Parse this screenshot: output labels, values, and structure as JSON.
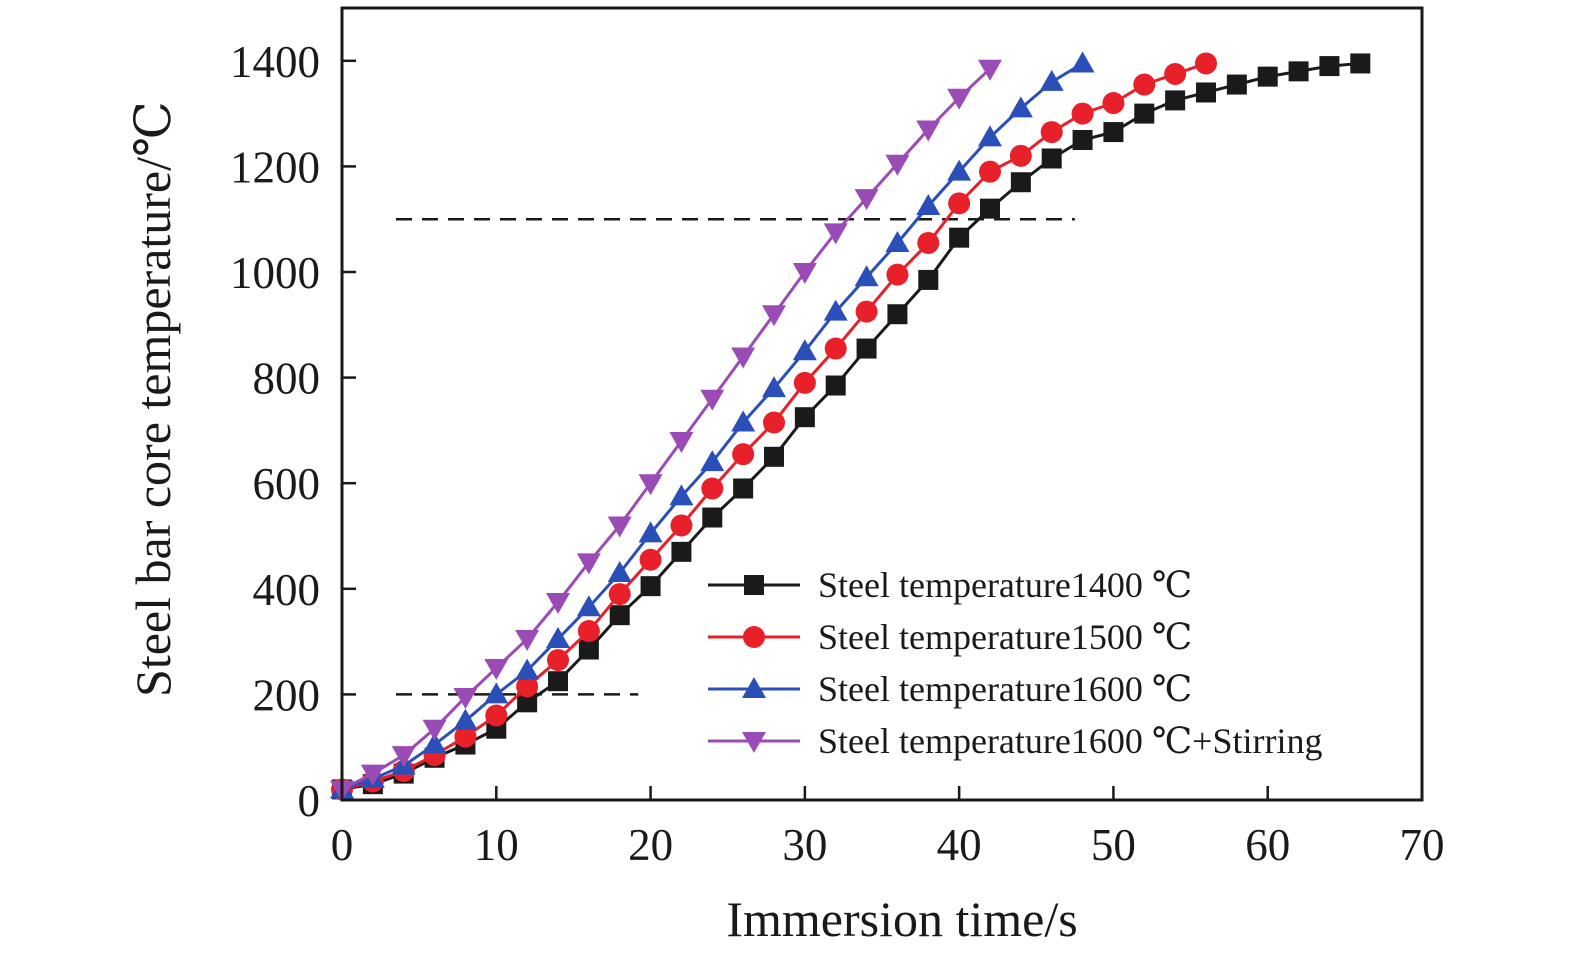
{
  "chart_data": {
    "type": "line",
    "title": "",
    "xlabel": "Immersion time/s",
    "ylabel": "Steel bar core temperature/℃",
    "xlim": [
      0,
      70
    ],
    "ylim": [
      0,
      1500
    ],
    "xticks": [
      "0",
      "10",
      "20",
      "30",
      "40",
      "50",
      "60",
      "70"
    ],
    "yticks": [
      "0",
      "200",
      "400",
      "600",
      "800",
      "1000",
      "1200",
      "1400"
    ],
    "grid": false,
    "legend_position": "bottom-right",
    "reference_lines": [
      {
        "y": 1100,
        "x_start": 3.5,
        "x_end": 47.5,
        "style": "dashed"
      },
      {
        "y": 200,
        "x_start": 3.5,
        "x_end": 19.2,
        "style": "dashed"
      }
    ],
    "series": [
      {
        "name": "Steel temperature1400 ℃",
        "color": "#1a1a1a",
        "marker": "square",
        "x": [
          0,
          2,
          4,
          6,
          8,
          10,
          12,
          14,
          16,
          18,
          20,
          22,
          24,
          26,
          28,
          30,
          32,
          34,
          36,
          38,
          40,
          42,
          44,
          46,
          48,
          50,
          52,
          54,
          56,
          58,
          60,
          62,
          64,
          66
        ],
        "y": [
          20,
          30,
          50,
          80,
          105,
          135,
          185,
          225,
          285,
          350,
          405,
          470,
          535,
          590,
          650,
          725,
          785,
          855,
          920,
          985,
          1065,
          1120,
          1170,
          1215,
          1250,
          1265,
          1300,
          1325,
          1340,
          1355,
          1370,
          1380,
          1390,
          1395
        ]
      },
      {
        "name": "Steel temperature1500 ℃",
        "color": "#e8202a",
        "marker": "circle",
        "x": [
          0,
          2,
          4,
          6,
          8,
          10,
          12,
          14,
          16,
          18,
          20,
          22,
          24,
          26,
          28,
          30,
          32,
          34,
          36,
          38,
          40,
          42,
          44,
          46,
          48,
          50,
          52,
          54,
          56
        ],
        "y": [
          20,
          35,
          55,
          85,
          120,
          160,
          215,
          265,
          320,
          390,
          455,
          520,
          590,
          655,
          715,
          790,
          855,
          925,
          995,
          1055,
          1130,
          1190,
          1220,
          1265,
          1300,
          1320,
          1355,
          1375,
          1395
        ]
      },
      {
        "name": "Steel temperature1600 ℃",
        "color": "#2b4fb8",
        "marker": "triangle-up",
        "x": [
          0,
          2,
          4,
          6,
          8,
          10,
          12,
          14,
          16,
          18,
          20,
          22,
          24,
          26,
          28,
          30,
          32,
          34,
          36,
          38,
          40,
          42,
          44,
          46,
          48
        ],
        "y": [
          20,
          40,
          65,
          105,
          150,
          200,
          245,
          305,
          365,
          430,
          505,
          575,
          640,
          715,
          780,
          850,
          925,
          990,
          1055,
          1125,
          1190,
          1255,
          1310,
          1360,
          1395
        ]
      },
      {
        "name": "Steel temperature1600 ℃+Stirring",
        "color": "#9b4bb5",
        "marker": "triangle-down",
        "x": [
          0,
          2,
          4,
          6,
          8,
          10,
          12,
          14,
          16,
          18,
          20,
          22,
          24,
          26,
          28,
          30,
          32,
          34,
          36,
          38,
          40,
          42
        ],
        "y": [
          20,
          50,
          85,
          135,
          195,
          250,
          305,
          375,
          450,
          520,
          600,
          680,
          760,
          840,
          920,
          1000,
          1075,
          1140,
          1205,
          1270,
          1330,
          1385
        ]
      }
    ]
  }
}
